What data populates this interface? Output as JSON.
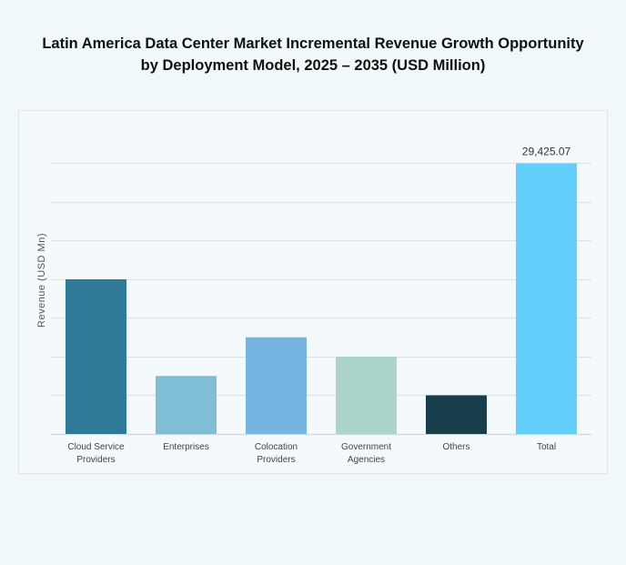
{
  "chart_data": {
    "type": "bar",
    "title": "Latin America Data Center Market Incremental Revenue Growth Opportunity",
    "subtitle": "by Deployment Model, 2025 – 2035 (USD Million)",
    "xlabel": "",
    "ylabel": "Revenue (USD Mn)",
    "categories": [
      [
        "Cloud Service",
        "Providers"
      ],
      [
        "Enterprises"
      ],
      [
        "Colocation",
        "Providers"
      ],
      [
        "Government",
        "Agencies"
      ],
      [
        "Others"
      ],
      [
        "Total"
      ]
    ],
    "values": [
      16814,
      6306,
      10509,
      8407,
      4204,
      29425.07
    ],
    "data_labels": [
      "",
      "",
      "",
      "",
      "",
      "29,425.07"
    ],
    "colors": [
      "#2f7a99",
      "#80bed8",
      "#76b4e2",
      "#abd5cb",
      "#173e4b",
      "#62d0fb"
    ],
    "ylim": [
      0,
      33629
    ],
    "grid": true,
    "gridline_step": 4204,
    "y_tick_labels_shown": false,
    "legend": "none"
  }
}
